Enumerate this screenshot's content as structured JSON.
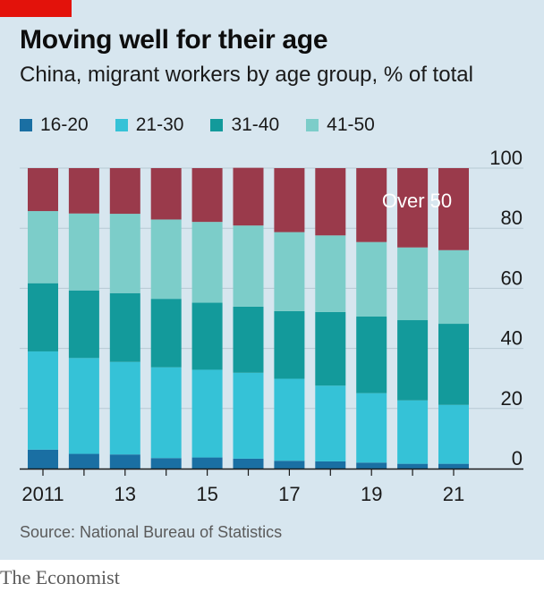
{
  "header": {
    "title": "Moving well for their age",
    "subtitle": "China, migrant workers by age group, % of total"
  },
  "legend": [
    {
      "label": "16-20",
      "color": "#1a6fa3"
    },
    {
      "label": "21-30",
      "color": "#35c2d7"
    },
    {
      "label": "31-40",
      "color": "#139a9b"
    },
    {
      "label": "41-50",
      "color": "#7ccdc9"
    }
  ],
  "annotation": "Over 50",
  "source": "Source: National Bureau of Statistics",
  "footer": "The Economist",
  "chart_data": {
    "type": "bar",
    "stacked": true,
    "categories": [
      "2011",
      "2012",
      "2013",
      "2014",
      "2015",
      "2016",
      "2017",
      "2018",
      "2019",
      "2020",
      "2021"
    ],
    "x_tick_labels": [
      "2011",
      "",
      "13",
      "",
      "15",
      "",
      "17",
      "",
      "19",
      "",
      "21"
    ],
    "ylim": [
      0,
      100
    ],
    "y_ticks": [
      0,
      20,
      40,
      60,
      80,
      100
    ],
    "y_axis_side": "right",
    "grid": true,
    "series": [
      {
        "name": "16-20",
        "color": "#1a6fa3",
        "values": [
          6.3,
          4.9,
          4.7,
          3.5,
          3.7,
          3.3,
          2.6,
          2.4,
          2.0,
          1.6,
          1.6
        ]
      },
      {
        "name": "21-30",
        "color": "#35c2d7",
        "values": [
          32.7,
          31.9,
          30.8,
          30.2,
          29.2,
          28.6,
          27.3,
          25.2,
          23.1,
          21.1,
          19.6
        ]
      },
      {
        "name": "31-40",
        "color": "#139a9b",
        "values": [
          22.7,
          22.5,
          22.9,
          22.8,
          22.3,
          22.0,
          22.5,
          24.5,
          25.5,
          26.7,
          27.0
        ]
      },
      {
        "name": "41-50",
        "color": "#7ccdc9",
        "values": [
          24.0,
          25.6,
          26.4,
          26.4,
          26.9,
          27.0,
          26.3,
          25.5,
          24.8,
          24.2,
          24.5
        ]
      },
      {
        "name": "Over 50",
        "color": "#9a3a4b",
        "values": [
          14.3,
          15.1,
          15.2,
          17.1,
          17.9,
          19.2,
          21.3,
          22.4,
          24.6,
          26.4,
          27.3
        ]
      }
    ]
  }
}
